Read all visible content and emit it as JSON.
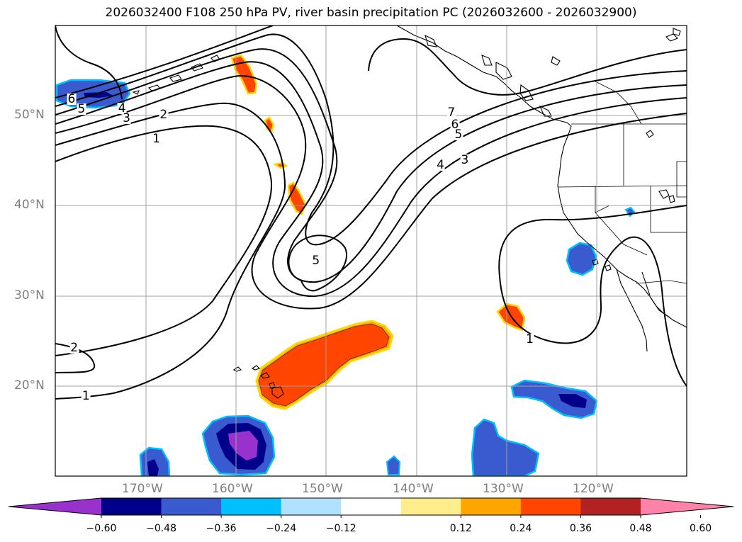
{
  "title": "2026032400 F108 250 hPa PV, river basin precipitation PC (2026032600 - 2026032900)",
  "map": {
    "lon_range": [
      -180,
      -110
    ],
    "lat_range": [
      10,
      60
    ],
    "lon_gridlines": [
      -170,
      -160,
      -150,
      -140,
      -130,
      -120
    ],
    "lat_gridlines": [
      20,
      30,
      40,
      50
    ],
    "lon_tick_labels": [
      "170°W",
      "160°W",
      "150°W",
      "140°W",
      "130°W",
      "120°W"
    ],
    "lat_tick_labels": [
      "20°N",
      "30°N",
      "40°N",
      "50°N"
    ],
    "pv_contour_labels": [
      {
        "text": "6",
        "lon": -178.2,
        "lat": 51.8
      },
      {
        "text": "5",
        "lon": -177.1,
        "lat": 50.7
      },
      {
        "text": "4",
        "lon": -172.6,
        "lat": 50.8
      },
      {
        "text": "3",
        "lon": -172.1,
        "lat": 49.7
      },
      {
        "text": "2",
        "lon": -168.0,
        "lat": 50.1
      },
      {
        "text": "1",
        "lon": -168.8,
        "lat": 47.4
      },
      {
        "text": "7",
        "lon": -136.1,
        "lat": 50.3
      },
      {
        "text": "6",
        "lon": -135.7,
        "lat": 49.0
      },
      {
        "text": "5",
        "lon": -135.3,
        "lat": 47.9
      },
      {
        "text": "4",
        "lon": -137.3,
        "lat": 44.5
      },
      {
        "text": "3",
        "lon": -134.6,
        "lat": 45.1
      },
      {
        "text": "5",
        "lon": -151.1,
        "lat": 33.9
      },
      {
        "text": "1",
        "lon": -127.4,
        "lat": 25.2
      },
      {
        "text": "2",
        "lon": -177.9,
        "lat": 24.2
      },
      {
        "text": "1",
        "lon": -176.6,
        "lat": 18.9
      }
    ]
  },
  "colorbar": {
    "colors": [
      "#9932cc",
      "#00008b",
      "#3a5bd0",
      "#00bfff",
      "#b0e2ff",
      "#ffffff",
      "#ffec8b",
      "#ffa500",
      "#ff4500",
      "#b22222",
      "#ff82ab"
    ],
    "ticks": [
      "−0.60",
      "−0.48",
      "−0.36",
      "−0.24",
      "−0.12",
      "0.12",
      "0.24",
      "0.36",
      "0.48",
      "0.60"
    ]
  }
}
